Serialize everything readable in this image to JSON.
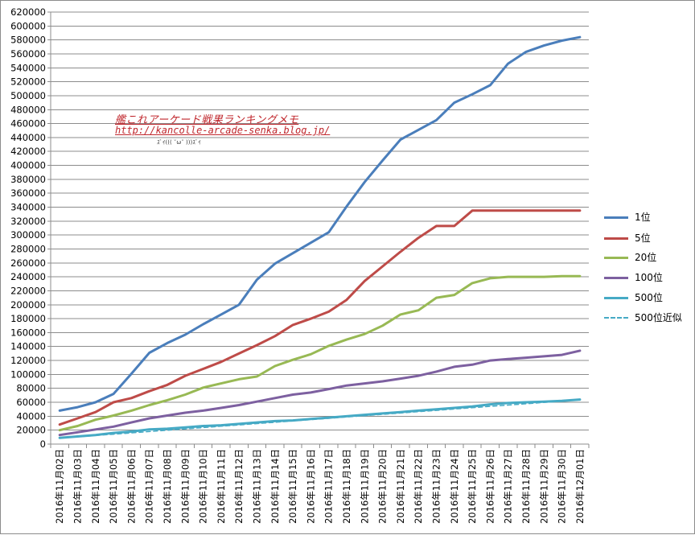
{
  "chart_data": {
    "type": "line",
    "title": "",
    "xlabel": "",
    "ylabel": "",
    "ylim": [
      0,
      620000
    ],
    "ytick_step": 20000,
    "grid": true,
    "legend_position": "right",
    "categories": [
      "2016年11月02日",
      "2016年11月03日",
      "2016年11月04日",
      "2016年11月05日",
      "2016年11月06日",
      "2016年11月07日",
      "2016年11月08日",
      "2016年11月09日",
      "2016年11月10日",
      "2016年11月11日",
      "2016年11月12日",
      "2016年11月13日",
      "2016年11月14日",
      "2016年11月15日",
      "2016年11月16日",
      "2016年11月17日",
      "2016年11月18日",
      "2016年11月19日",
      "2016年11月20日",
      "2016年11月21日",
      "2016年11月22日",
      "2016年11月23日",
      "2016年11月24日",
      "2016年11月25日",
      "2016年11月26日",
      "2016年11月27日",
      "2016年11月28日",
      "2016年11月29日",
      "2016年11月30日",
      "2016年12月01日"
    ],
    "series": [
      {
        "name": "1位",
        "color": "#4a7ebb",
        "style": "solid",
        "values": [
          48000,
          53000,
          60000,
          72000,
          101000,
          131000,
          145000,
          157000,
          172000,
          186000,
          200000,
          236000,
          259000,
          274000,
          289000,
          304000,
          341000,
          376000,
          407000,
          437000,
          451000,
          465000,
          490000,
          502000,
          515000,
          546000,
          563000,
          572000,
          579000,
          584000
        ]
      },
      {
        "name": "5位",
        "color": "#be4b48",
        "style": "solid",
        "values": [
          28000,
          37000,
          46000,
          60000,
          66000,
          76000,
          85000,
          98000,
          108000,
          118000,
          130000,
          142000,
          155000,
          171000,
          180000,
          190000,
          207000,
          234000,
          255000,
          276000,
          296000,
          313000,
          313000,
          335000,
          335000,
          335000,
          335000,
          335000,
          335000,
          335000
        ]
      },
      {
        "name": "20位",
        "color": "#98b954",
        "style": "solid",
        "values": [
          20000,
          26000,
          35000,
          41000,
          48000,
          56000,
          63000,
          71000,
          81000,
          87000,
          93000,
          97000,
          112000,
          121000,
          129000,
          141000,
          150000,
          158000,
          170000,
          186000,
          192000,
          210000,
          214000,
          231000,
          238000,
          240000,
          240000,
          240000,
          241000,
          241000
        ]
      },
      {
        "name": "100位",
        "color": "#7d60a0",
        "style": "solid",
        "values": [
          13000,
          17000,
          21000,
          25000,
          31000,
          37000,
          41000,
          45000,
          48000,
          52000,
          56000,
          61000,
          66000,
          71000,
          74000,
          79000,
          84000,
          87000,
          90000,
          94000,
          98000,
          104000,
          111000,
          114000,
          120000,
          122000,
          124000,
          126000,
          128000,
          134000
        ]
      },
      {
        "name": "500位",
        "color": "#46aac5",
        "style": "solid",
        "values": [
          9000,
          11000,
          13000,
          16000,
          18000,
          21000,
          22000,
          24000,
          26000,
          27000,
          29000,
          31000,
          33000,
          34000,
          36000,
          38000,
          40000,
          42000,
          44000,
          46000,
          48000,
          50000,
          52000,
          54000,
          57000,
          59000,
          60000,
          61000,
          62000,
          64000
        ]
      },
      {
        "name": "500位近似",
        "color": "#46aac5",
        "style": "dashed",
        "values": [
          8500,
          10400,
          12300,
          14200,
          16100,
          18000,
          19900,
          21800,
          23700,
          25600,
          27500,
          29400,
          31300,
          33200,
          35100,
          37000,
          38900,
          40800,
          42700,
          44600,
          46500,
          48400,
          50300,
          52200,
          54100,
          56000,
          57900,
          59800,
          61700,
          63600
        ]
      }
    ]
  },
  "watermark": {
    "line1": "艦これアーケード戦果ランキングメモ",
    "line2": "http://kancolle-arcade-senka.blog.jp/",
    "line3": "ｽﾞｲ((( ˘ω˘ )))ｽﾞｲ"
  }
}
